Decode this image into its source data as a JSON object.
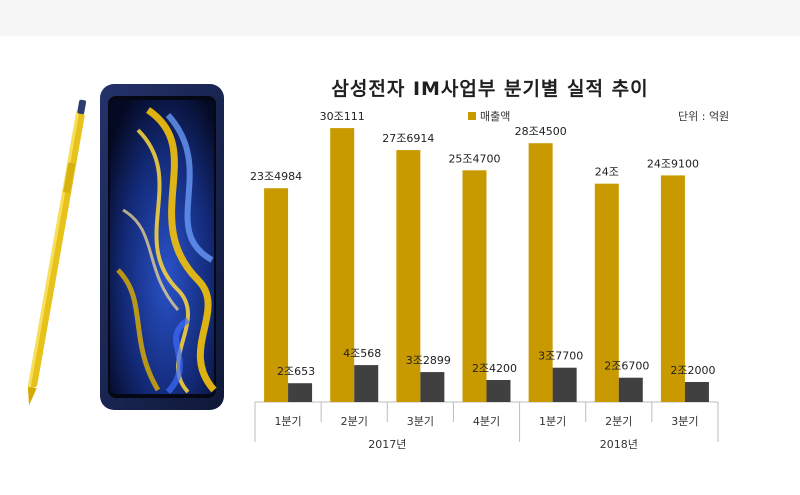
{
  "chart_data": {
    "type": "bar",
    "title": "삼성전자 IM사업부 분기별 실적 추이",
    "unit": "단위 : 억원",
    "categories": [
      "1분기",
      "2분기",
      "3분기",
      "4분기",
      "1분기",
      "2분기",
      "3분기"
    ],
    "year_groups": [
      {
        "label": "2017년",
        "categories": [
          0,
          1,
          2,
          3
        ]
      },
      {
        "label": "2018년",
        "categories": [
          4,
          5,
          6
        ]
      }
    ],
    "series": [
      {
        "name": "매출액",
        "color": "#c99a00",
        "values": [
          234984,
          301111,
          276914,
          254700,
          284500,
          240000,
          249100
        ],
        "labels": [
          "23조4984",
          "30조111",
          "27조6914",
          "25조4700",
          "28조4500",
          "24조",
          "24조9100"
        ]
      },
      {
        "color": "#404040",
        "values": [
          20653,
          40568,
          32899,
          24200,
          37700,
          26700,
          22000
        ],
        "labels": [
          "2조653",
          "4조568",
          "3조2899",
          "2조4200",
          "3조7700",
          "2조6700",
          "2조2000"
        ]
      }
    ],
    "ylim": [
      0,
      310000
    ],
    "grid": false,
    "legend": "top"
  },
  "colors": {
    "revenue": "#c99a00",
    "profit": "#404040",
    "axis": "#bdbdbd"
  },
  "image": {
    "icon": "smartphone-with-pen-icon"
  }
}
